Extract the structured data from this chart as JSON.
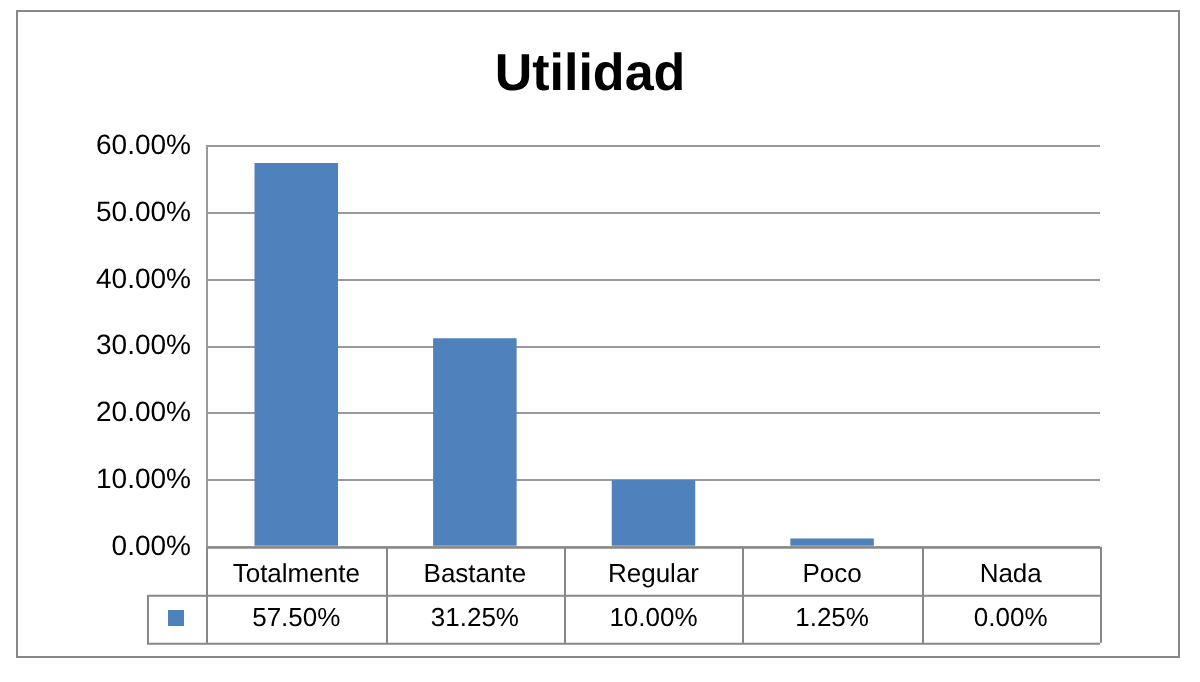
{
  "chart_data": {
    "type": "bar",
    "title": "Utilidad",
    "categories": [
      "Totalmente",
      "Bastante",
      "Regular",
      "Poco",
      "Nada"
    ],
    "values": [
      57.5,
      31.25,
      10,
      1.25,
      0
    ],
    "color": "#4f81bd",
    "value_labels": [
      "57.50%",
      "31.25%",
      "10.00%",
      "1.25%",
      "0.00%"
    ],
    "ylim": [
      0,
      60
    ],
    "yticks": [
      {
        "value": 0,
        "label": "0.00%"
      },
      {
        "value": 10,
        "label": "10.00%"
      },
      {
        "value": 20,
        "label": "20.00%"
      },
      {
        "value": 30,
        "label": "30.00%"
      },
      {
        "value": 40,
        "label": "40.00%"
      },
      {
        "value": 50,
        "label": "50.00%"
      },
      {
        "value": 60,
        "label": "60.00%"
      }
    ],
    "grid": "y"
  }
}
